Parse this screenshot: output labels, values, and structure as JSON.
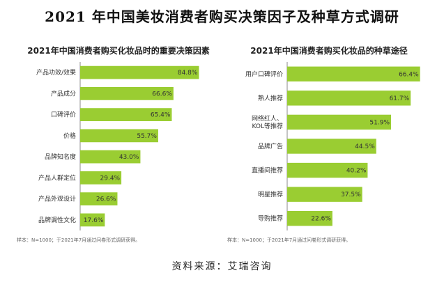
{
  "title": "2021 年中国美妆消费者购买决策因子及种草方式调研",
  "footer": "资料来源：艾瑞咨询",
  "colors": {
    "bar": "#9acd32",
    "axis": "#888888"
  },
  "chart_data": [
    {
      "type": "bar",
      "orientation": "horizontal",
      "title": "2021年中国消费者购买化妆品时的重要决策因素",
      "categories": [
        "产品功效/效果",
        "产品成分",
        "口碑评价",
        "价格",
        "品牌知名度",
        "产品人群定位",
        "产品外观设计",
        "品牌调性文化"
      ],
      "values": [
        84.8,
        66.6,
        65.4,
        55.7,
        43.0,
        29.4,
        26.6,
        17.6
      ],
      "value_labels": [
        "84.8%",
        "66.6%",
        "65.4%",
        "55.7%",
        "43.0%",
        "29.4%",
        "26.6%",
        "17.6%"
      ],
      "xlim": [
        0,
        100
      ],
      "note": "样本：N=1000；于2021年7月通过问卷形式调研获得。"
    },
    {
      "type": "bar",
      "orientation": "horizontal",
      "title": "2021年中国消费者购买化妆品的种草途径",
      "categories": [
        "用户口碑评价",
        "熟人推荐",
        "网络红人、\nKOL等推荐",
        "品牌广告",
        "直播间推荐",
        "明星推荐",
        "导购推荐"
      ],
      "values": [
        66.4,
        61.7,
        51.9,
        44.5,
        40.2,
        37.5,
        22.6
      ],
      "value_labels": [
        "66.4%",
        "61.7%",
        "51.9%",
        "44.5%",
        "40.2%",
        "37.5%",
        "22.6%"
      ],
      "xlim": [
        0,
        70
      ],
      "note": "样本：N=1000；于2021年7月通过问卷形式调研获得。"
    }
  ]
}
